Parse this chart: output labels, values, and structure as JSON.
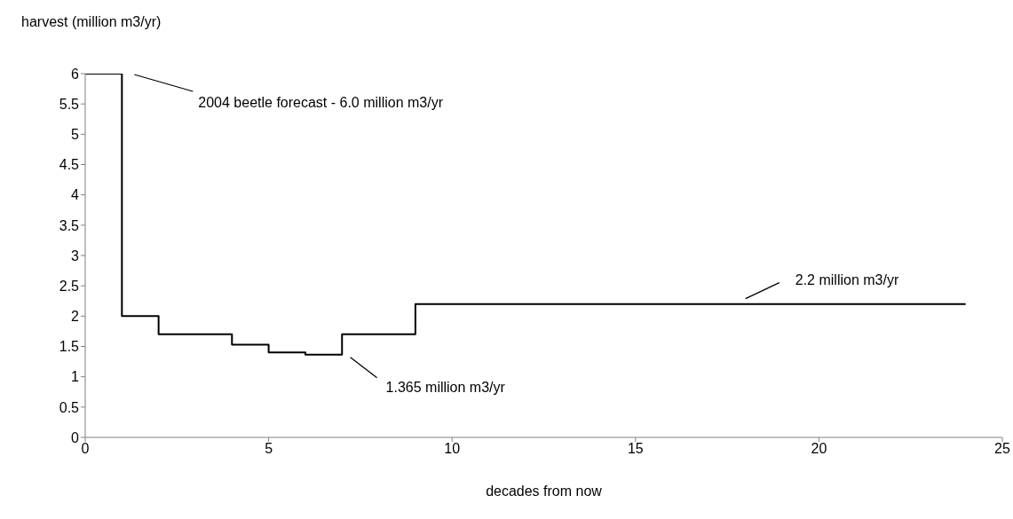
{
  "chart_data": {
    "type": "step",
    "ylabel": "harvest (million m3/yr)",
    "xlabel": "decades from now",
    "x": [
      0,
      1,
      2,
      4,
      5,
      6,
      7,
      9,
      24
    ],
    "values": [
      6,
      2,
      1.7,
      1.53,
      1.4,
      1.365,
      1.7,
      2.2,
      2.2
    ],
    "color": "#000000",
    "xlim": [
      0,
      25
    ],
    "xticks": [
      0,
      5,
      10,
      15,
      20,
      25
    ],
    "ylim": [
      0,
      6
    ],
    "yticks": [
      0,
      0.5,
      1,
      1.5,
      2,
      2.5,
      3,
      3.5,
      4,
      4.5,
      5,
      5.5,
      6
    ],
    "annotations": [
      "2004 beetle forecast - 6.0 million m3/yr",
      "1.365 million m3/yr",
      "2.2 million m3/yr"
    ]
  }
}
